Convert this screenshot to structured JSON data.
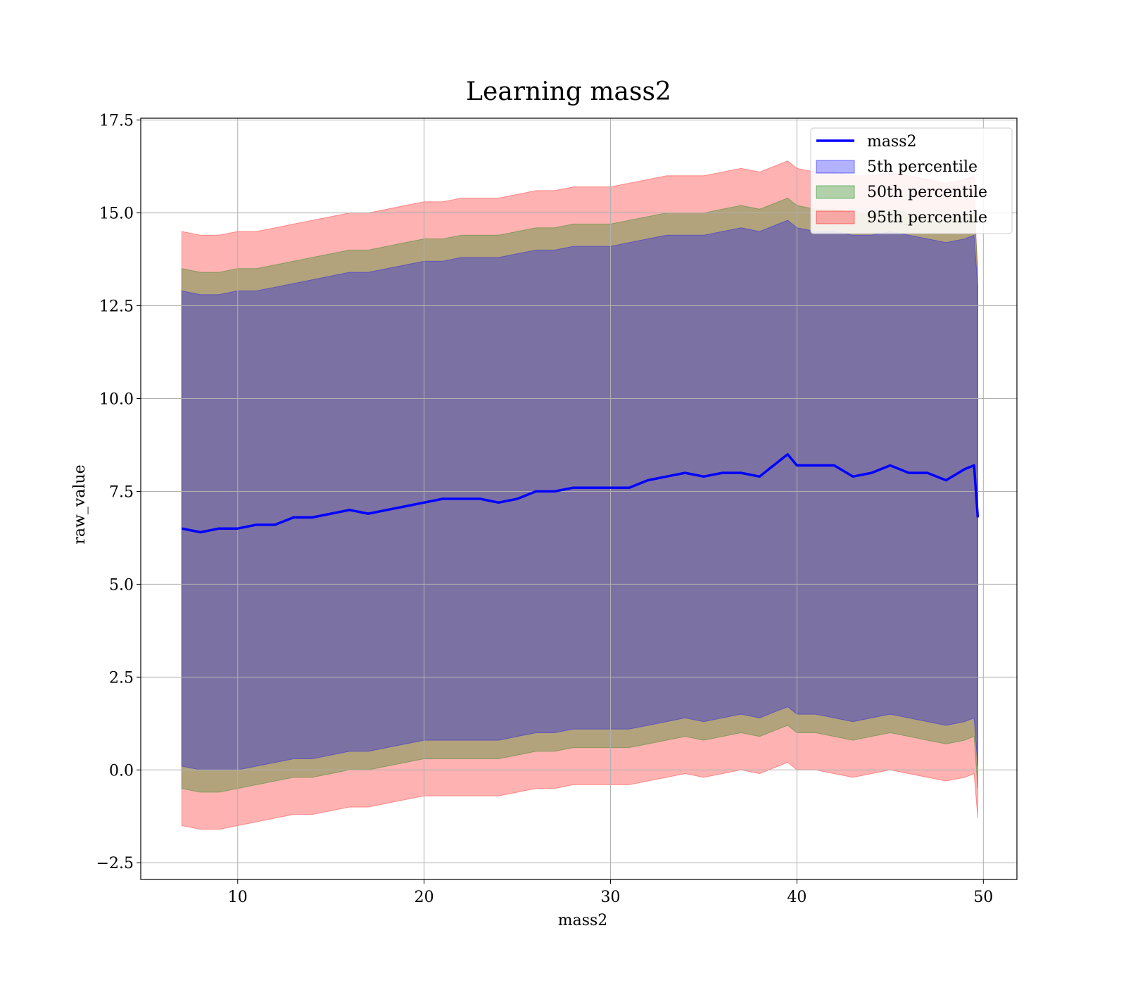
{
  "chart_data": {
    "type": "line",
    "title": "Learning mass2",
    "xlabel": "mass2",
    "ylabel": "raw_value",
    "xlim": [
      4.8,
      51.8
    ],
    "ylim": [
      -2.95,
      17.55
    ],
    "x_ticks": [
      10,
      20,
      30,
      40,
      50
    ],
    "x_tick_labels": [
      "10",
      "20",
      "30",
      "40",
      "50"
    ],
    "y_ticks": [
      -2.5,
      0.0,
      2.5,
      5.0,
      7.5,
      10.0,
      12.5,
      15.0,
      17.5
    ],
    "y_tick_labels": [
      "−2.5",
      "0.0",
      "2.5",
      "5.0",
      "7.5",
      "10.0",
      "12.5",
      "15.0",
      "17.5"
    ],
    "grid": true,
    "legend_position": "top-right",
    "legend": [
      "mass2",
      "5th percentile",
      "50th percentile",
      "95th percentile"
    ],
    "colors": {
      "line": "#0000ff",
      "band_5th": "#0000ff",
      "band_50th": "#008000",
      "band_95th": "#ff0000",
      "grid": "#b0b0b0"
    },
    "series": [
      {
        "name": "mass2",
        "kind": "line",
        "x": [
          7.0,
          8.0,
          9.0,
          10.0,
          11.0,
          12.0,
          13.0,
          14.0,
          15.0,
          16.0,
          17.0,
          18.0,
          19.0,
          20.0,
          21.0,
          22.0,
          23.0,
          24.0,
          25.0,
          26.0,
          27.0,
          28.0,
          29.0,
          30.0,
          31.0,
          32.0,
          33.0,
          34.0,
          35.0,
          36.0,
          37.0,
          38.0,
          39.0,
          39.5,
          40.0,
          41.0,
          42.0,
          43.0,
          44.0,
          45.0,
          46.0,
          47.0,
          48.0,
          49.0,
          49.5,
          49.7
        ],
        "y": [
          6.5,
          6.4,
          6.5,
          6.5,
          6.6,
          6.6,
          6.8,
          6.8,
          6.9,
          7.0,
          6.9,
          7.0,
          7.1,
          7.2,
          7.3,
          7.3,
          7.3,
          7.2,
          7.3,
          7.5,
          7.5,
          7.6,
          7.6,
          7.6,
          7.6,
          7.8,
          7.9,
          8.0,
          7.9,
          8.0,
          8.0,
          7.9,
          8.3,
          8.5,
          8.2,
          8.2,
          8.2,
          7.9,
          8.0,
          8.2,
          8.0,
          8.0,
          7.8,
          8.1,
          8.2,
          6.8
        ]
      },
      {
        "name": "5th percentile",
        "kind": "band",
        "x": [
          7.0,
          8.0,
          9.0,
          10.0,
          11.0,
          12.0,
          13.0,
          14.0,
          15.0,
          16.0,
          17.0,
          18.0,
          19.0,
          20.0,
          21.0,
          22.0,
          23.0,
          24.0,
          25.0,
          26.0,
          27.0,
          28.0,
          29.0,
          30.0,
          31.0,
          32.0,
          33.0,
          34.0,
          35.0,
          36.0,
          37.0,
          38.0,
          39.0,
          39.5,
          40.0,
          41.0,
          42.0,
          43.0,
          44.0,
          45.0,
          46.0,
          47.0,
          48.0,
          49.0,
          49.5,
          49.7
        ],
        "lower": [
          0.1,
          0.0,
          0.0,
          0.0,
          0.1,
          0.2,
          0.3,
          0.3,
          0.4,
          0.5,
          0.5,
          0.6,
          0.7,
          0.8,
          0.8,
          0.8,
          0.8,
          0.8,
          0.9,
          1.0,
          1.0,
          1.1,
          1.1,
          1.1,
          1.1,
          1.2,
          1.3,
          1.4,
          1.3,
          1.4,
          1.5,
          1.4,
          1.6,
          1.7,
          1.5,
          1.5,
          1.4,
          1.3,
          1.4,
          1.5,
          1.4,
          1.3,
          1.2,
          1.3,
          1.4,
          0.1
        ],
        "upper": [
          12.9,
          12.8,
          12.8,
          12.9,
          12.9,
          13.0,
          13.1,
          13.2,
          13.3,
          13.4,
          13.4,
          13.5,
          13.6,
          13.7,
          13.7,
          13.8,
          13.8,
          13.8,
          13.9,
          14.0,
          14.0,
          14.1,
          14.1,
          14.1,
          14.2,
          14.3,
          14.4,
          14.4,
          14.4,
          14.5,
          14.6,
          14.5,
          14.7,
          14.8,
          14.6,
          14.5,
          14.5,
          14.4,
          14.4,
          14.5,
          14.4,
          14.3,
          14.2,
          14.3,
          14.4,
          13.0
        ]
      },
      {
        "name": "50th percentile",
        "kind": "band",
        "x": [
          7.0,
          8.0,
          9.0,
          10.0,
          11.0,
          12.0,
          13.0,
          14.0,
          15.0,
          16.0,
          17.0,
          18.0,
          19.0,
          20.0,
          21.0,
          22.0,
          23.0,
          24.0,
          25.0,
          26.0,
          27.0,
          28.0,
          29.0,
          30.0,
          31.0,
          32.0,
          33.0,
          34.0,
          35.0,
          36.0,
          37.0,
          38.0,
          39.0,
          39.5,
          40.0,
          41.0,
          42.0,
          43.0,
          44.0,
          45.0,
          46.0,
          47.0,
          48.0,
          49.0,
          49.5,
          49.7
        ],
        "lower": [
          -0.5,
          -0.6,
          -0.6,
          -0.5,
          -0.4,
          -0.3,
          -0.2,
          -0.2,
          -0.1,
          0.0,
          0.0,
          0.1,
          0.2,
          0.3,
          0.3,
          0.3,
          0.3,
          0.3,
          0.4,
          0.5,
          0.5,
          0.6,
          0.6,
          0.6,
          0.6,
          0.7,
          0.8,
          0.9,
          0.8,
          0.9,
          1.0,
          0.9,
          1.1,
          1.2,
          1.0,
          1.0,
          0.9,
          0.8,
          0.9,
          1.0,
          0.9,
          0.8,
          0.7,
          0.8,
          0.9,
          -0.5
        ],
        "upper": [
          13.5,
          13.4,
          13.4,
          13.5,
          13.5,
          13.6,
          13.7,
          13.8,
          13.9,
          14.0,
          14.0,
          14.1,
          14.2,
          14.3,
          14.3,
          14.4,
          14.4,
          14.4,
          14.5,
          14.6,
          14.6,
          14.7,
          14.7,
          14.7,
          14.8,
          14.9,
          15.0,
          15.0,
          15.0,
          15.1,
          15.2,
          15.1,
          15.3,
          15.4,
          15.2,
          15.1,
          15.1,
          15.0,
          15.0,
          15.1,
          15.0,
          14.9,
          14.8,
          14.9,
          15.0,
          13.6
        ]
      },
      {
        "name": "95th percentile",
        "kind": "band",
        "x": [
          7.0,
          8.0,
          9.0,
          10.0,
          11.0,
          12.0,
          13.0,
          14.0,
          15.0,
          16.0,
          17.0,
          18.0,
          19.0,
          20.0,
          21.0,
          22.0,
          23.0,
          24.0,
          25.0,
          26.0,
          27.0,
          28.0,
          29.0,
          30.0,
          31.0,
          32.0,
          33.0,
          34.0,
          35.0,
          36.0,
          37.0,
          38.0,
          39.0,
          39.5,
          40.0,
          41.0,
          42.0,
          43.0,
          44.0,
          45.0,
          46.0,
          47.0,
          48.0,
          49.0,
          49.5,
          49.7
        ],
        "lower": [
          -1.5,
          -1.6,
          -1.6,
          -1.5,
          -1.4,
          -1.3,
          -1.2,
          -1.2,
          -1.1,
          -1.0,
          -1.0,
          -0.9,
          -0.8,
          -0.7,
          -0.7,
          -0.7,
          -0.7,
          -0.7,
          -0.6,
          -0.5,
          -0.5,
          -0.4,
          -0.4,
          -0.4,
          -0.4,
          -0.3,
          -0.2,
          -0.1,
          -0.2,
          -0.1,
          0.0,
          -0.1,
          0.1,
          0.2,
          0.0,
          0.0,
          -0.1,
          -0.2,
          -0.1,
          0.0,
          -0.1,
          -0.2,
          -0.3,
          -0.2,
          -0.1,
          -1.3
        ],
        "upper": [
          14.5,
          14.4,
          14.4,
          14.5,
          14.5,
          14.6,
          14.7,
          14.8,
          14.9,
          15.0,
          15.0,
          15.1,
          15.2,
          15.3,
          15.3,
          15.4,
          15.4,
          15.4,
          15.5,
          15.6,
          15.6,
          15.7,
          15.7,
          15.7,
          15.8,
          15.9,
          16.0,
          16.0,
          16.0,
          16.1,
          16.2,
          16.1,
          16.3,
          16.4,
          16.2,
          16.1,
          16.1,
          16.0,
          16.0,
          16.1,
          16.0,
          15.9,
          15.8,
          15.9,
          16.0,
          13.0
        ]
      }
    ]
  }
}
